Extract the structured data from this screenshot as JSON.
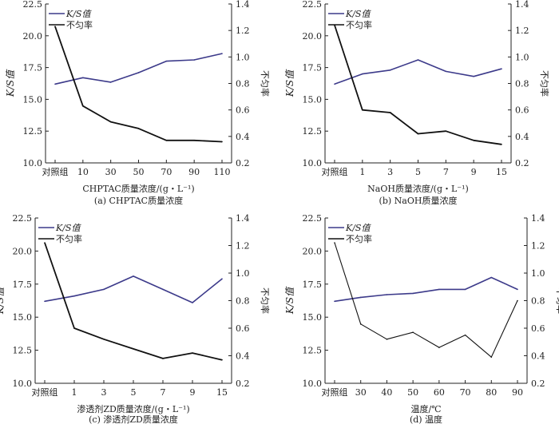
{
  "colors": {
    "kS": "#3c3a8a",
    "uneven": "#111111",
    "axis": "#222222"
  },
  "chart_data": [
    {
      "type": "line",
      "caption": "(a) CHPTAC质量浓度",
      "xlabel": "CHPTAC质量浓度/(g・L⁻¹)",
      "ylabel": "K/S值",
      "y2label": "不匀率",
      "legend": [
        "K/S值",
        "不匀率"
      ],
      "categories": [
        "对照组",
        "10",
        "30",
        "50",
        "70",
        "90",
        "110"
      ],
      "ylim": [
        10,
        22.5
      ],
      "yticks": [
        "10.0",
        "12.5",
        "15.0",
        "17.5",
        "20.0",
        "22.5"
      ],
      "y2lim": [
        0.2,
        1.4
      ],
      "y2ticks": [
        "0.2",
        "0.4",
        "0.6",
        "0.8",
        "1.0",
        "1.2",
        "1.4"
      ],
      "series": [
        {
          "name": "K/S值",
          "axis": "left",
          "values": [
            16.2,
            16.7,
            16.35,
            17.1,
            18.0,
            18.1,
            18.6
          ]
        },
        {
          "name": "不匀率",
          "axis": "right",
          "values": [
            1.23,
            0.63,
            0.51,
            0.46,
            0.37,
            0.37,
            0.36
          ]
        }
      ]
    },
    {
      "type": "line",
      "caption": "(b) NaOH质量浓度",
      "xlabel": "NaOH质量浓度/(g・L⁻¹)",
      "ylabel": "K/S值",
      "y2label": "不匀率",
      "legend": [
        "K/S值",
        "不匀率"
      ],
      "categories": [
        "对照组",
        "1",
        "3",
        "5",
        "7",
        "9",
        "15"
      ],
      "ylim": [
        10,
        22.5
      ],
      "yticks": [
        "10.0",
        "12.5",
        "15.0",
        "17.5",
        "20.0",
        "22.5"
      ],
      "y2lim": [
        0.2,
        1.4
      ],
      "y2ticks": [
        "0.2",
        "0.4",
        "0.6",
        "0.8",
        "1.0",
        "1.2",
        "1.4"
      ],
      "series": [
        {
          "name": "K/S值",
          "axis": "left",
          "values": [
            16.2,
            17.0,
            17.3,
            18.1,
            17.2,
            16.8,
            17.4
          ]
        },
        {
          "name": "不匀率",
          "axis": "right",
          "values": [
            1.24,
            0.6,
            0.58,
            0.42,
            0.44,
            0.37,
            0.34
          ]
        }
      ]
    },
    {
      "type": "line",
      "caption": "(c) 渗透剂ZD质量浓度",
      "xlabel": "渗透剂ZD质量浓度/(g・L⁻¹)",
      "ylabel": "K/S值",
      "y2label": "不匀率",
      "legend": [
        "K/S值",
        "不匀率"
      ],
      "categories": [
        "对照组",
        "1",
        "3",
        "5",
        "7",
        "9",
        "15"
      ],
      "ylim": [
        10,
        22.5
      ],
      "yticks": [
        "10.0",
        "12.5",
        "15.0",
        "17.5",
        "20.0",
        "22.5"
      ],
      "y2lim": [
        0.2,
        1.4
      ],
      "y2ticks": [
        "0.2",
        "0.4",
        "0.6",
        "0.8",
        "1.0",
        "1.2",
        "1.4"
      ],
      "series": [
        {
          "name": "K/S值",
          "axis": "left",
          "values": [
            16.2,
            16.6,
            17.1,
            18.1,
            17.1,
            16.1,
            17.9
          ]
        },
        {
          "name": "不匀率",
          "axis": "right",
          "values": [
            1.22,
            0.6,
            0.52,
            0.45,
            0.38,
            0.42,
            0.37
          ]
        }
      ]
    },
    {
      "type": "line",
      "caption": "(d) 温度",
      "xlabel": "温度/℃",
      "ylabel": "K/S值",
      "y2label": "不匀率",
      "legend": [
        "K/S值",
        "不匀率"
      ],
      "categories": [
        "对照组",
        "30",
        "40",
        "50",
        "60",
        "70",
        "80",
        "90"
      ],
      "ylim": [
        10,
        22.5
      ],
      "yticks": [
        "10.0",
        "12.5",
        "15.0",
        "17.5",
        "20.0",
        "22.5"
      ],
      "y2lim": [
        0.2,
        1.4
      ],
      "y2ticks": [
        "0.2",
        "0.4",
        "0.6",
        "0.8",
        "1.0",
        "1.2",
        "1.4"
      ],
      "series": [
        {
          "name": "K/S值",
          "axis": "left",
          "values": [
            16.2,
            16.5,
            16.7,
            16.8,
            17.1,
            17.1,
            18.0,
            17.1
          ]
        },
        {
          "name": "不匀率",
          "axis": "right",
          "values": [
            1.22,
            0.63,
            0.52,
            0.57,
            0.46,
            0.55,
            0.39,
            0.8
          ]
        }
      ]
    }
  ]
}
